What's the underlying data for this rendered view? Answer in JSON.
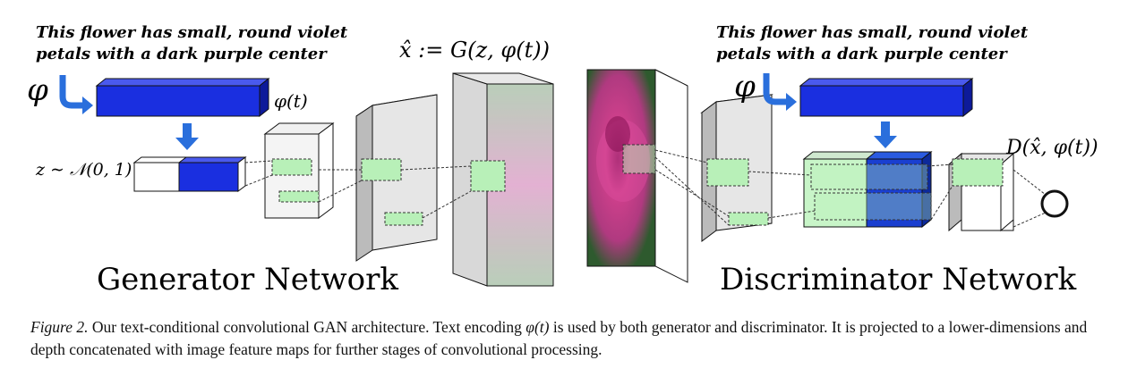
{
  "generator": {
    "text_line1": "This flower has small, round violet",
    "text_line2": "petals with a dark purple center",
    "phi_symbol": "φ",
    "phi_t_label": "φ(t)",
    "noise_label": "z ∼ 𝒩(0, 1)",
    "output_label": "x̂ := G(z, φ(t))",
    "network_title": "Generator Network"
  },
  "discriminator": {
    "text_line1": "This flower has small, round violet",
    "text_line2": "petals with a dark purple center",
    "phi_symbol": "φ",
    "output_label": "D(x̂, φ(t))",
    "network_title": "Discriminator Network"
  },
  "colors": {
    "text_embedding_blue": "#1a2fe0",
    "feature_green": "#b8f0b8",
    "arrow_blue": "#2a6fdc"
  },
  "caption": {
    "figure_label": "Figure 2.",
    "line1_part1": " Our text-conditional convolutional GAN architecture.  Text encoding ",
    "phi_t": "φ(t)",
    "line1_part2": " is used by both generator and discriminator.  It is projected to a lower-dimensions and depth concatenated with image feature maps for further stages of convolutional processing."
  }
}
